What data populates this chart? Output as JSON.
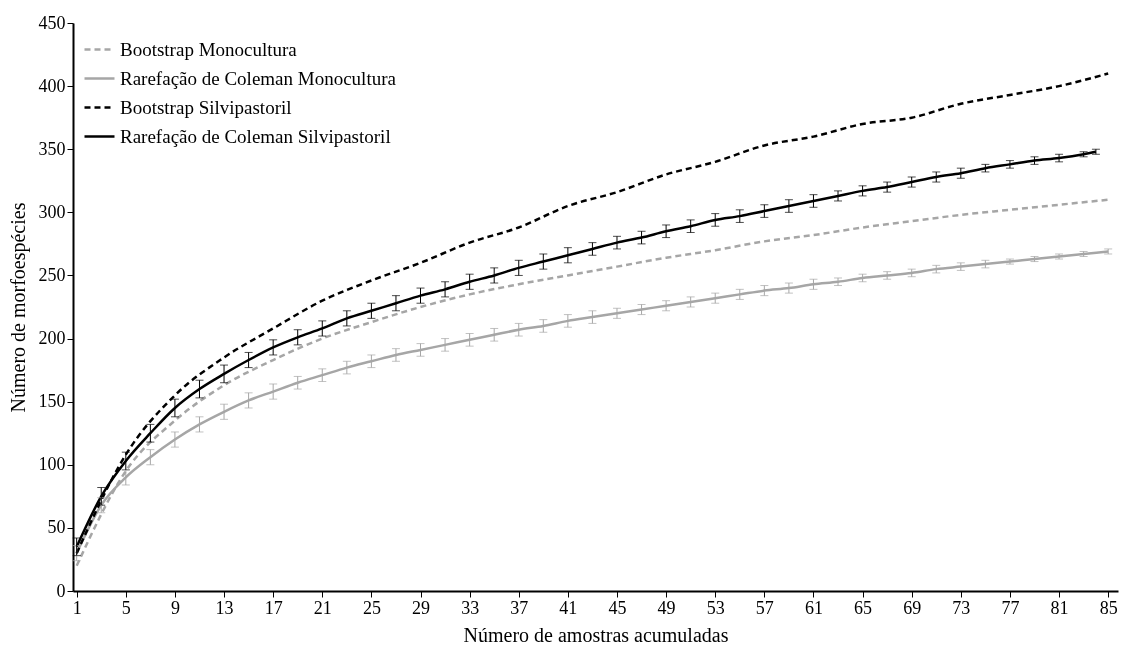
{
  "chart_data": {
    "type": "line",
    "xlabel": "Número de amostras acumuladas",
    "ylabel": "Número de morfoespécies",
    "xlim": [
      0.7,
      85.8
    ],
    "xticks": [
      1,
      5,
      9,
      13,
      17,
      21,
      25,
      29,
      33,
      37,
      41,
      45,
      49,
      53,
      57,
      61,
      65,
      69,
      73,
      77,
      81,
      85
    ],
    "ylim": [
      0,
      450
    ],
    "yticks": [
      0,
      50,
      100,
      150,
      200,
      250,
      300,
      350,
      400,
      450
    ],
    "grid": false,
    "legend": "top left",
    "marker": "none",
    "series": [
      {
        "name": "Bootstrap Monocultura",
        "color": "#a6a6a6",
        "line_style": "dashed",
        "x": [
          1,
          5,
          9,
          13,
          17,
          21,
          25,
          29,
          33,
          37,
          41,
          45,
          49,
          53,
          57,
          61,
          65,
          69,
          73,
          77,
          81,
          85
        ],
        "values": [
          20,
          95,
          135,
          163,
          183,
          200,
          213,
          225,
          235,
          243,
          250,
          257,
          264,
          270,
          277,
          282,
          288,
          293,
          298,
          302,
          306,
          310
        ]
      },
      {
        "name": "Rarefação de Coleman Monocultura",
        "color": "#a6a6a6",
        "line_style": "solid",
        "x": [
          1,
          3,
          5,
          7,
          9,
          11,
          13,
          15,
          17,
          19,
          21,
          23,
          25,
          27,
          29,
          31,
          33,
          35,
          37,
          39,
          41,
          43,
          45,
          47,
          49,
          51,
          53,
          55,
          57,
          59,
          61,
          63,
          65,
          67,
          69,
          71,
          73,
          75,
          77,
          79,
          81,
          83,
          85
        ],
        "values": [
          30,
          68,
          90,
          106,
          120,
          132,
          142,
          151,
          158,
          165,
          171,
          177,
          182,
          187,
          191,
          195,
          199,
          203,
          207,
          210,
          214,
          217,
          220,
          223,
          226,
          229,
          232,
          235,
          238,
          240,
          243,
          245,
          248,
          250,
          252,
          255,
          257,
          259,
          261,
          263,
          265,
          267,
          269
        ],
        "errors": [
          6,
          6,
          6,
          6,
          6,
          6,
          6,
          6,
          6,
          5,
          5,
          5,
          5,
          5,
          5,
          5,
          5,
          5,
          5,
          5,
          5,
          5,
          4,
          4,
          4,
          4,
          4,
          4,
          4,
          4,
          4,
          3,
          3,
          3,
          3,
          3,
          3,
          3,
          2,
          2,
          2,
          2,
          2
        ]
      },
      {
        "name": "Bootstrap Silvipastoril",
        "color": "#000000",
        "line_style": "dashed",
        "x": [
          1,
          5,
          9,
          13,
          17,
          21,
          25,
          29,
          33,
          37,
          41,
          45,
          49,
          53,
          57,
          61,
          65,
          69,
          73,
          77,
          81,
          85
        ],
        "values": [
          30,
          108,
          155,
          185,
          208,
          230,
          246,
          260,
          276,
          288,
          305,
          316,
          330,
          340,
          353,
          360,
          370,
          375,
          386,
          393,
          400,
          410
        ]
      },
      {
        "name": "Rarefação de Coleman Silvipastoril",
        "color": "#000000",
        "line_style": "solid",
        "x": [
          1,
          3,
          5,
          7,
          9,
          11,
          13,
          15,
          17,
          19,
          21,
          23,
          25,
          27,
          29,
          31,
          33,
          35,
          37,
          39,
          41,
          43,
          45,
          47,
          49,
          51,
          53,
          55,
          57,
          59,
          61,
          63,
          65,
          67,
          69,
          71,
          73,
          75,
          77,
          79,
          81,
          83,
          84
        ],
        "values": [
          35,
          75,
          103,
          125,
          145,
          160,
          172,
          183,
          193,
          201,
          208,
          216,
          222,
          228,
          234,
          239,
          245,
          250,
          256,
          261,
          266,
          271,
          276,
          280,
          285,
          289,
          294,
          297,
          301,
          305,
          309,
          313,
          317,
          320,
          324,
          328,
          331,
          335,
          338,
          341,
          343,
          346,
          348
        ],
        "errors": [
          7,
          7,
          7,
          7,
          7,
          7,
          7,
          6,
          6,
          6,
          6,
          6,
          6,
          6,
          6,
          6,
          6,
          6,
          6,
          6,
          6,
          5,
          5,
          5,
          5,
          5,
          5,
          5,
          5,
          5,
          5,
          4,
          4,
          4,
          4,
          4,
          4,
          3,
          3,
          3,
          3,
          2,
          2
        ]
      }
    ]
  }
}
